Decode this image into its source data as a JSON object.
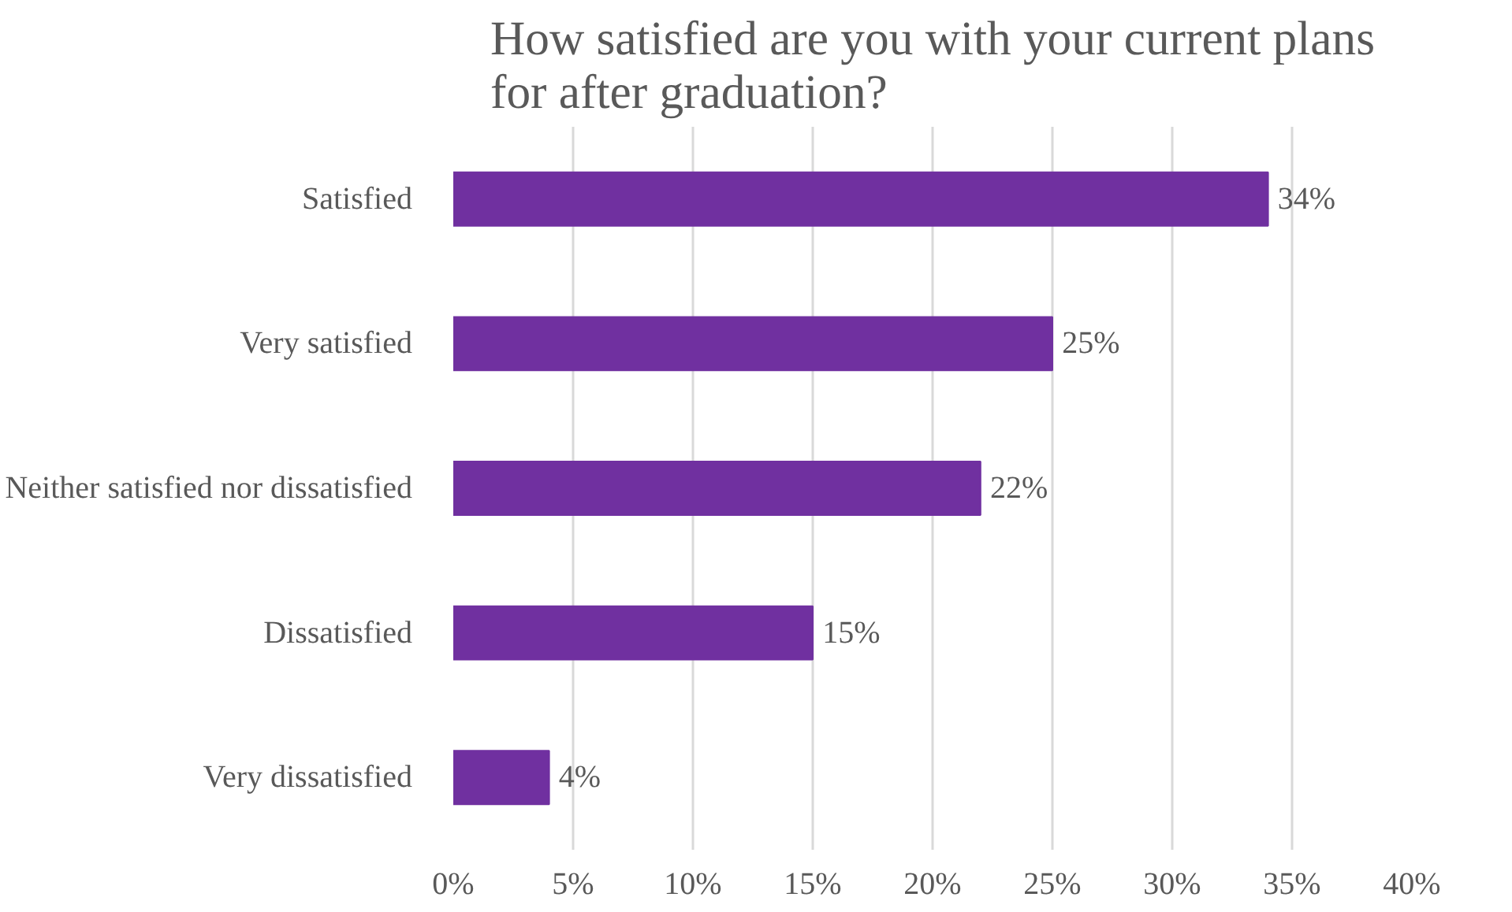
{
  "chart_data": {
    "type": "bar",
    "orientation": "horizontal",
    "title": "How satisfied are you with your current plans for after graduation?",
    "categories": [
      "Satisfied",
      "Very satisfied",
      "Neither satisfied nor dissatisfied",
      "Dissatisfied",
      "Very dissatisfied"
    ],
    "values": [
      34,
      25,
      22,
      15,
      4
    ],
    "value_labels": [
      "34%",
      "25%",
      "22%",
      "15%",
      "4%"
    ],
    "color": "#7030a0",
    "xlim": [
      0,
      40
    ],
    "xticks": [
      {
        "value": 0,
        "label": "0%"
      },
      {
        "value": 5,
        "label": "5%"
      },
      {
        "value": 10,
        "label": "10%"
      },
      {
        "value": 15,
        "label": "15%"
      },
      {
        "value": 20,
        "label": "20%"
      },
      {
        "value": 25,
        "label": "25%"
      },
      {
        "value": 30,
        "label": "30%"
      },
      {
        "value": 35,
        "label": "35%"
      },
      {
        "value": 40,
        "label": "40%"
      }
    ],
    "grid": "x"
  }
}
